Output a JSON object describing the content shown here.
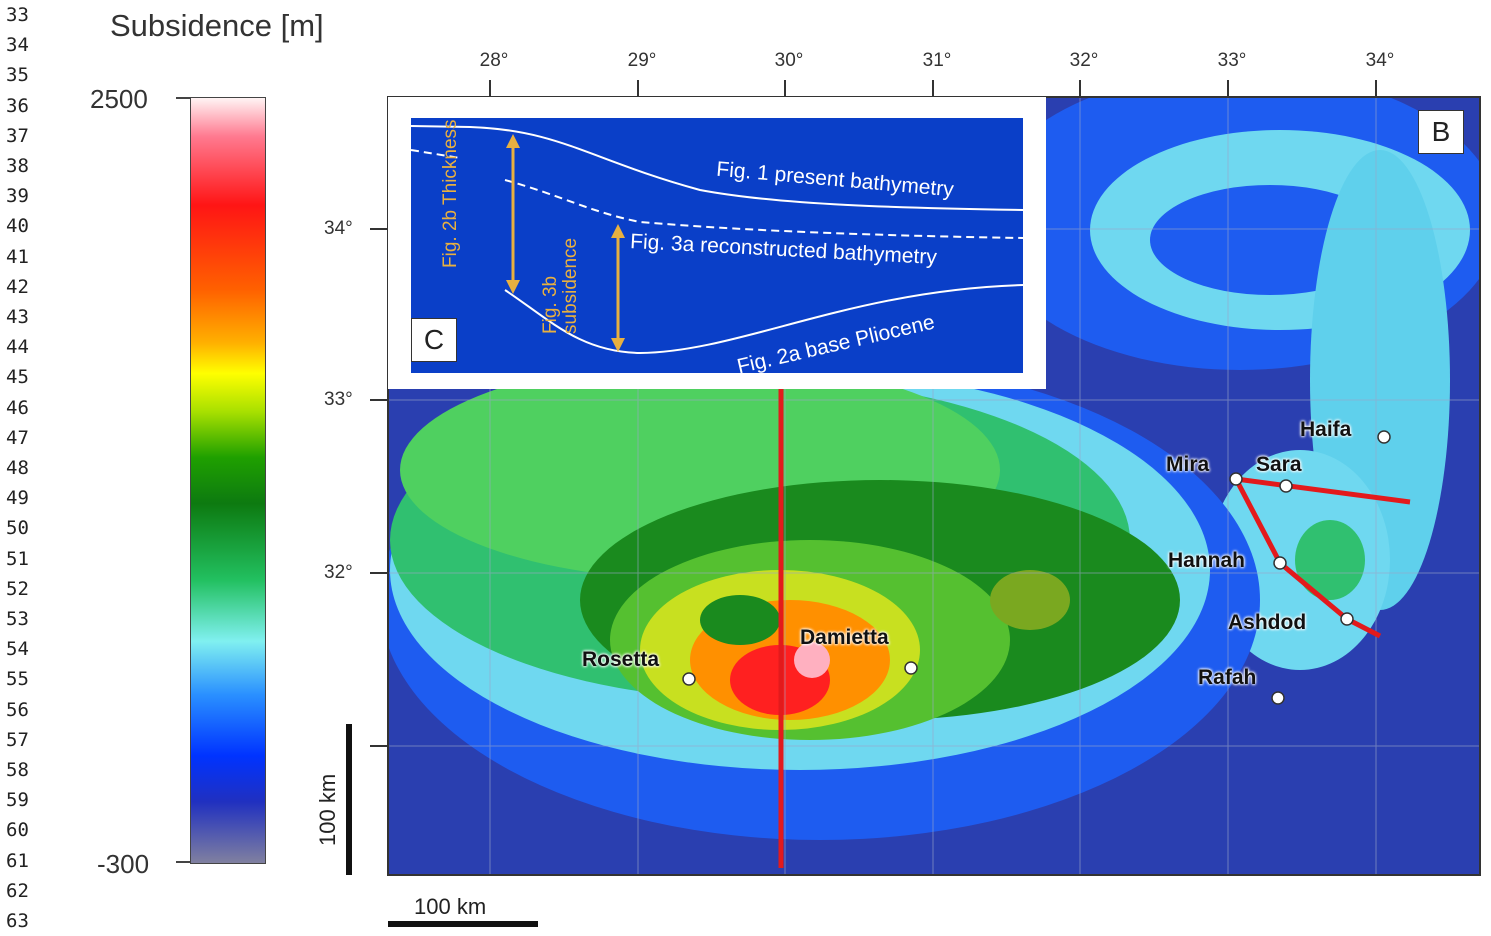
{
  "line_numbers": [
    "33",
    "34",
    "35",
    "36",
    "37",
    "38",
    "39",
    "40",
    "41",
    "42",
    "43",
    "44",
    "45",
    "46",
    "47",
    "48",
    "49",
    "50",
    "51",
    "52",
    "53",
    "54",
    "55",
    "56",
    "57",
    "58",
    "59",
    "60",
    "61",
    "62",
    "63"
  ],
  "colorbar": {
    "title": "Subsidence [m]",
    "max_label": "2500",
    "min_label": "-300",
    "max_value": 2500,
    "min_value": -300
  },
  "map": {
    "panel_label": "B",
    "longitude_ticks": [
      "28°",
      "29°",
      "30°",
      "31°",
      "32°",
      "33°",
      "34°"
    ],
    "latitude_ticks": [
      "34°",
      "33°",
      "32°"
    ],
    "scale_bar_horizontal": "100 km",
    "scale_bar_vertical": "100 km",
    "places": [
      {
        "name": "Haifa"
      },
      {
        "name": "Mira"
      },
      {
        "name": "Sara"
      },
      {
        "name": "Hannah"
      },
      {
        "name": "Ashdod"
      },
      {
        "name": "Rafah"
      },
      {
        "name": "Damietta"
      },
      {
        "name": "Rosetta"
      }
    ],
    "profile_line_color": "#e31a1c"
  },
  "inset": {
    "panel_label": "C",
    "background_color": "#0a3fc8",
    "labels": {
      "present": "Fig. 1 present bathymetry",
      "reconstructed": "Fig. 3a reconstructed bathymetry",
      "base": "Fig. 2a base Pliocene",
      "thickness": "Fig. 2b Thickness",
      "subsidence": "Fig. 3b subsidence"
    },
    "arrow_color": "#e8b040"
  }
}
